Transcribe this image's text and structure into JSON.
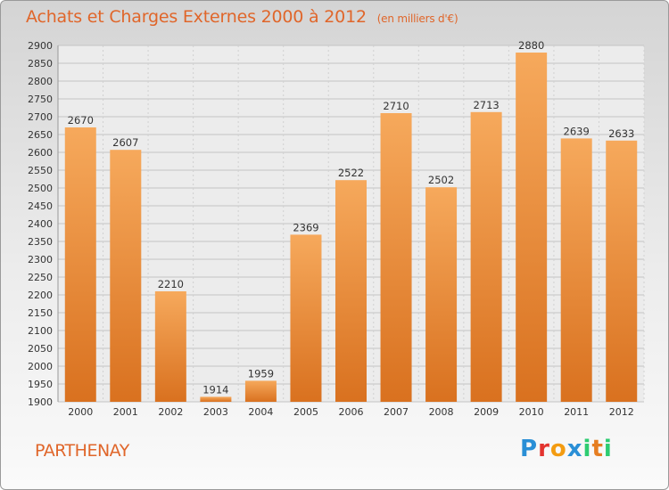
{
  "title": "Achats et Charges Externes 2000 à 2012",
  "subtitle": "(en milliers d'€)",
  "location": "PARTHENAY",
  "logo": {
    "text": "Proxiti",
    "letters": [
      "P",
      "r",
      "o",
      "x",
      "i",
      "t",
      "i"
    ],
    "colors": [
      "#2a8fd6",
      "#e3342f",
      "#f39c12",
      "#2a8fd6",
      "#2ecc71",
      "#e67e22",
      "#2ecc71"
    ]
  },
  "colors": {
    "accent": "#e0662a",
    "bar_top": "#f6a95c",
    "bar_bottom": "#d9711f"
  },
  "chart_data": {
    "type": "bar",
    "categories": [
      "2000",
      "2001",
      "2002",
      "2003",
      "2004",
      "2005",
      "2006",
      "2007",
      "2008",
      "2009",
      "2010",
      "2011",
      "2012"
    ],
    "values": [
      2670,
      2607,
      2210,
      1914,
      1959,
      2369,
      2522,
      2710,
      2502,
      2713,
      2880,
      2639,
      2633
    ],
    "ylim": [
      1900,
      2900
    ],
    "ytick_step": 50,
    "grid": true
  }
}
